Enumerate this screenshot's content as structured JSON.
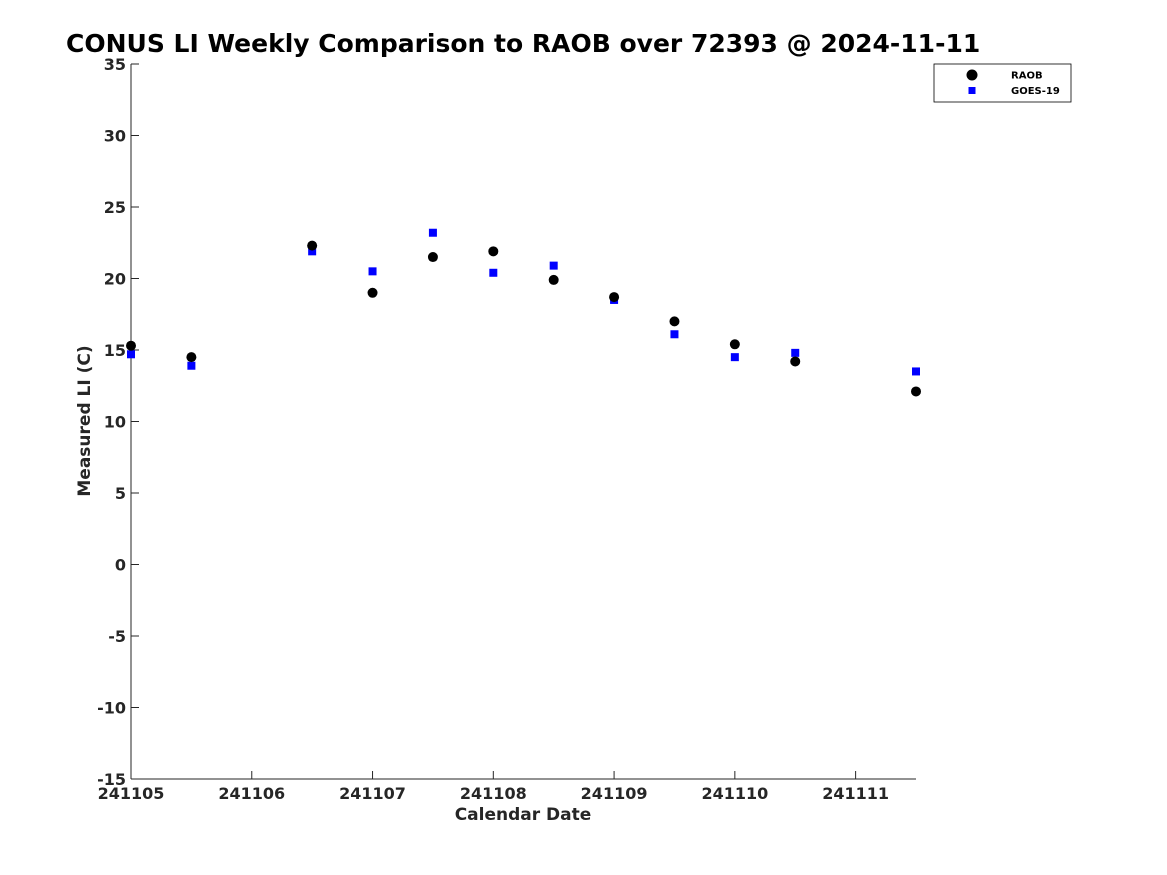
{
  "chart_data": {
    "type": "scatter",
    "title": "CONUS LI Weekly Comparison to RAOB over 72393 @ 2024-11-11",
    "xlabel": "Calendar Date",
    "ylabel": "Measured LI (C)",
    "x_tick_labels": [
      "241105",
      "241106",
      "241107",
      "241108",
      "241109",
      "241110",
      "241111"
    ],
    "y_tick_labels": [
      "35",
      "30",
      "25",
      "20",
      "15",
      "10",
      "5",
      "0",
      "-5",
      "-10",
      "-15"
    ],
    "xlim": [
      0,
      6.5
    ],
    "ylim": [
      -15,
      35
    ],
    "grid": false,
    "legend_position": "top-right",
    "series": [
      {
        "name": "RAOB",
        "color": "#000000",
        "marker": "circle",
        "x": [
          0,
          0.5,
          1.5,
          2,
          2.5,
          3,
          3.5,
          4,
          4.5,
          5,
          5.5,
          6.5
        ],
        "y": [
          15.3,
          14.5,
          22.3,
          19.0,
          21.5,
          21.9,
          19.9,
          18.7,
          17.0,
          15.4,
          14.2,
          12.1
        ]
      },
      {
        "name": "GOES-19",
        "color": "#0000ff",
        "marker": "square",
        "x": [
          0,
          0.5,
          1.5,
          2,
          2.5,
          3,
          3.5,
          4,
          4.5,
          5,
          5.5,
          6.5
        ],
        "y": [
          14.7,
          13.9,
          21.9,
          20.5,
          23.2,
          20.4,
          20.9,
          18.5,
          16.1,
          14.5,
          14.8,
          13.5
        ]
      }
    ]
  }
}
